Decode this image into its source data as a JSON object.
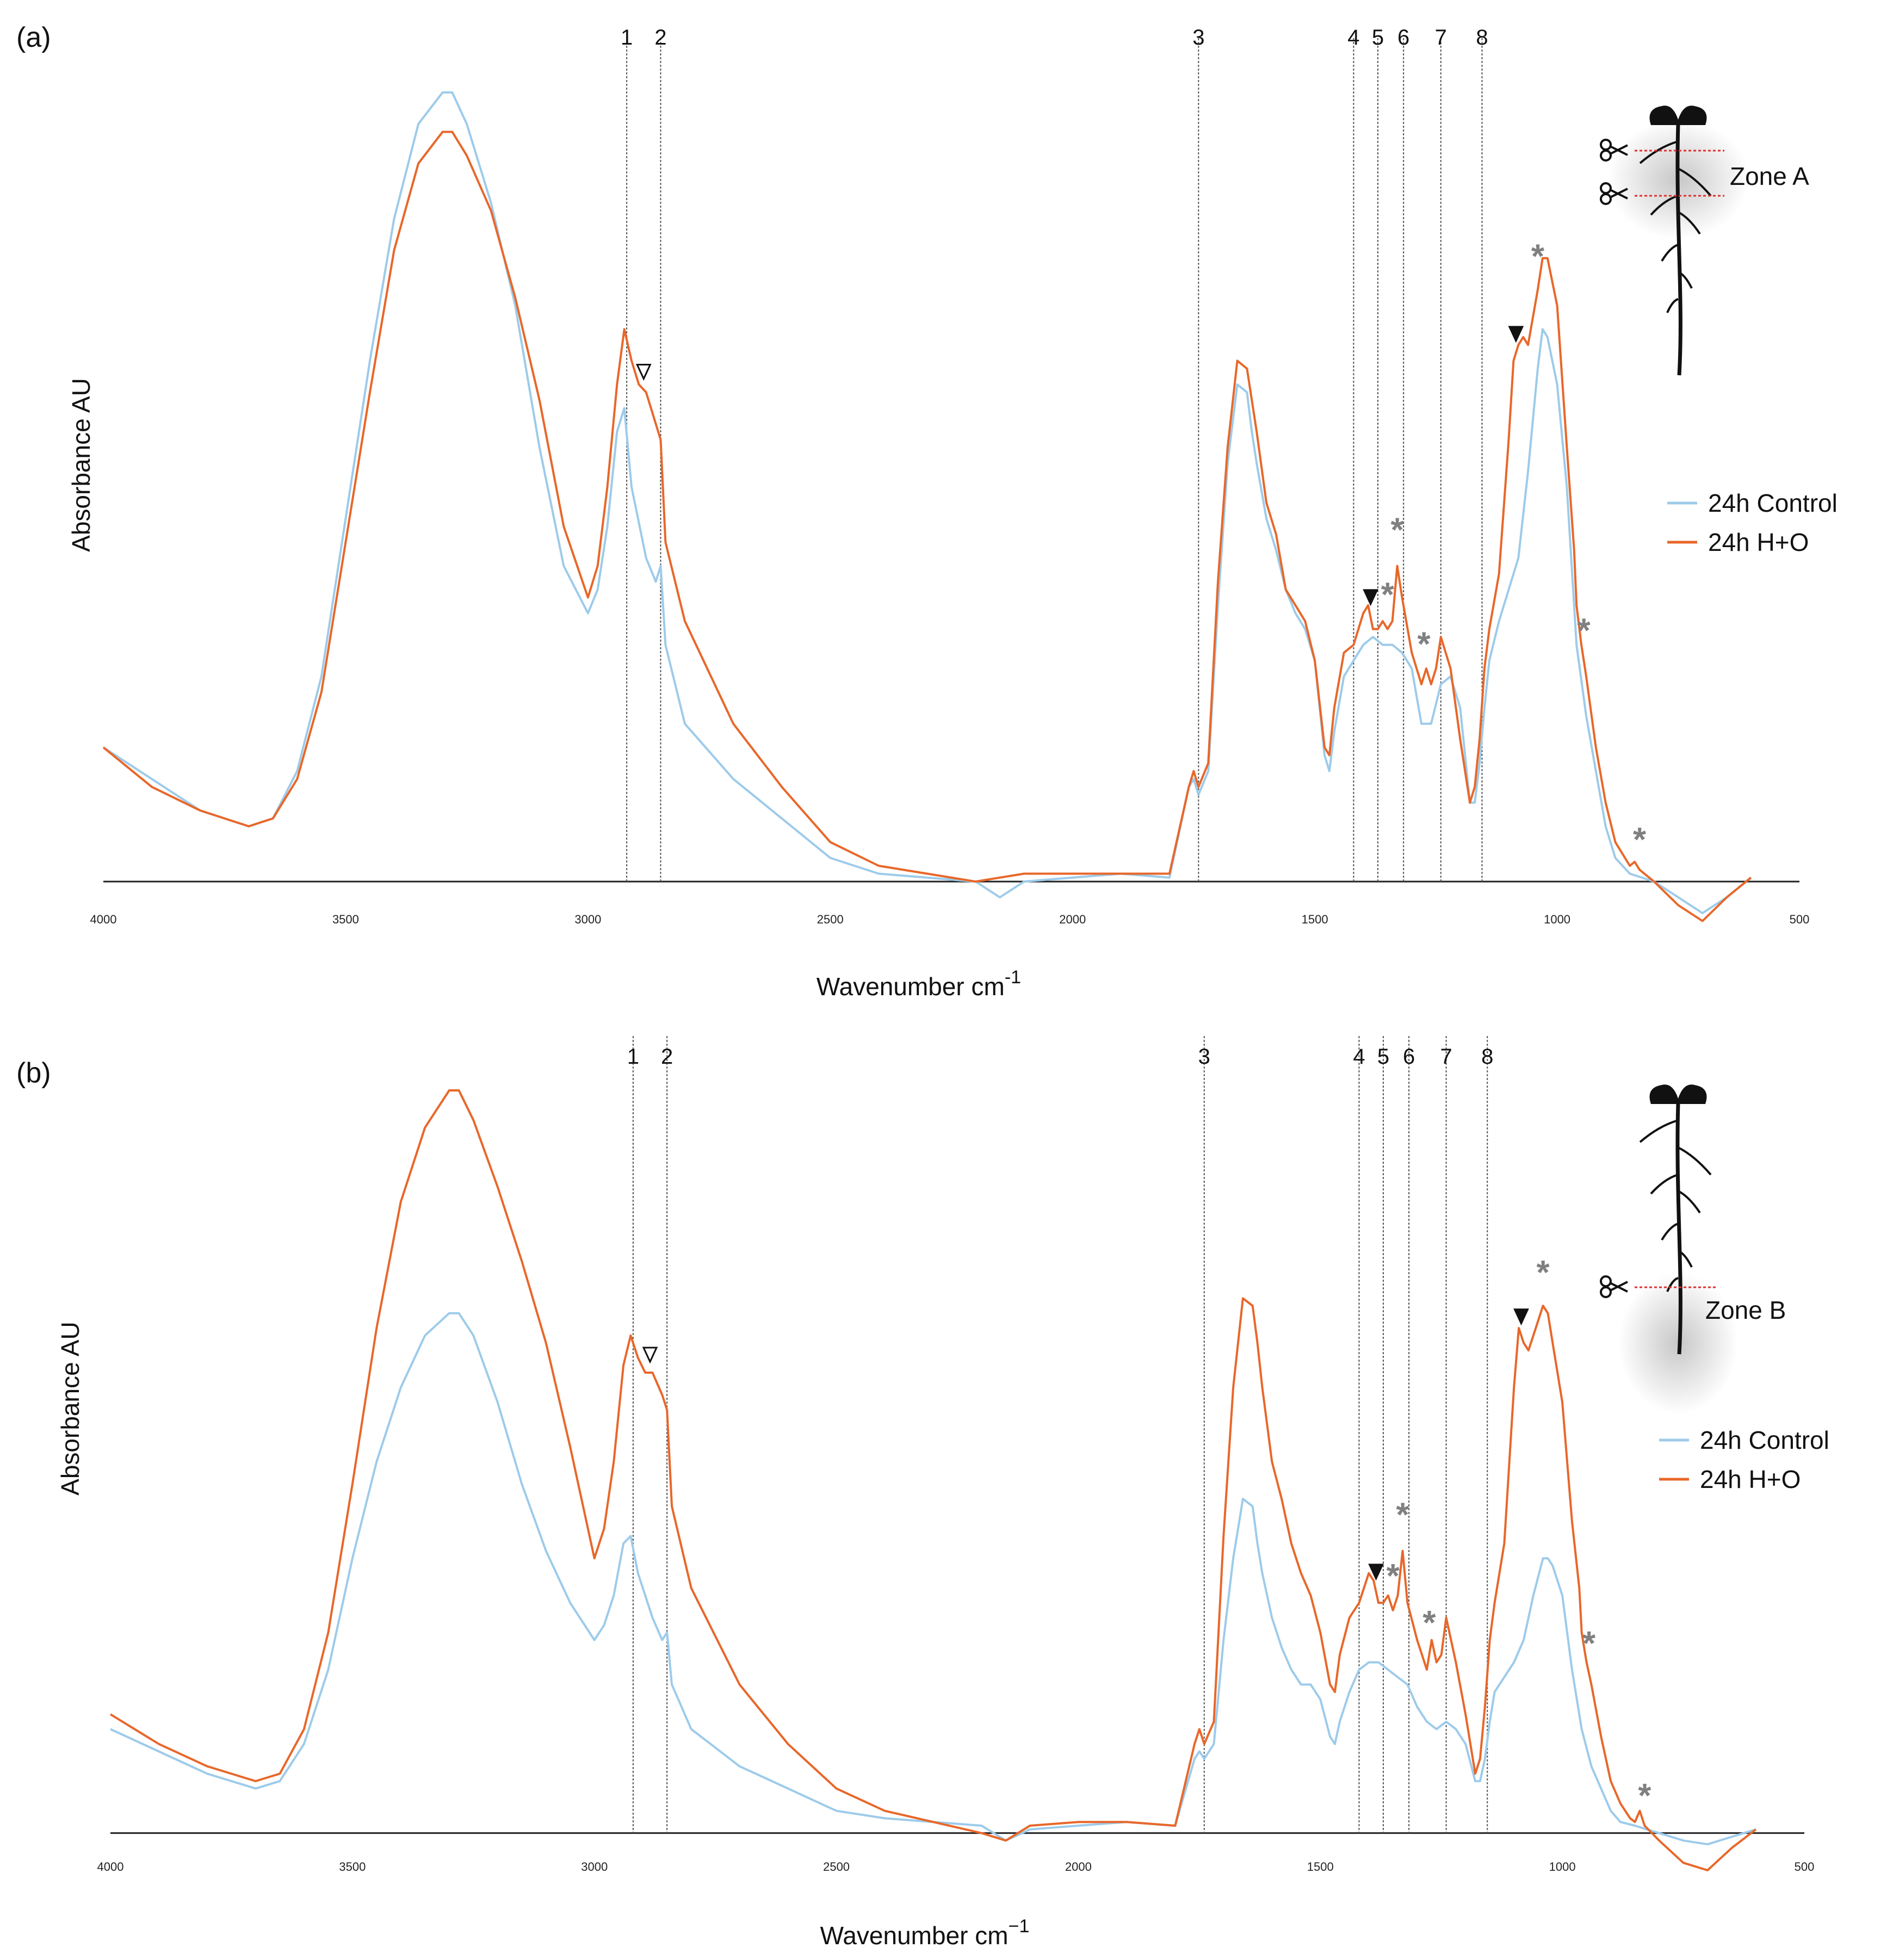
{
  "chart_data": [
    {
      "type": "line",
      "panel_label": "(a)",
      "xlabel_main": "Wavenumber cm",
      "xlabel_sup": "-1",
      "ylabel": "Absorbance AU",
      "xlim": [
        4000,
        500
      ],
      "ylim": [
        -0.02,
        1.0
      ],
      "x_ticks": [
        "4000",
        "3500",
        "3000",
        "2500",
        "2000",
        "1500",
        "1000",
        "500"
      ],
      "band_lines": [
        {
          "label": "1",
          "x": 2920
        },
        {
          "label": "2",
          "x": 2850
        },
        {
          "label": "3",
          "x": 1740
        },
        {
          "label": "4",
          "x": 1420
        },
        {
          "label": "5",
          "x": 1370
        },
        {
          "label": "6",
          "x": 1317
        },
        {
          "label": "7",
          "x": 1240
        },
        {
          "label": "8",
          "x": 1155
        }
      ],
      "zone_label": "Zone A",
      "legend": [
        "24h Control",
        "24h H+O"
      ],
      "series": [
        {
          "name": "24h Control",
          "color": "#9dcbea",
          "x": [
            4000,
            3900,
            3800,
            3700,
            3650,
            3600,
            3550,
            3500,
            3450,
            3400,
            3350,
            3300,
            3280,
            3250,
            3200,
            3150,
            3100,
            3050,
            3000,
            2980,
            2960,
            2940,
            2925,
            2910,
            2880,
            2860,
            2850,
            2840,
            2800,
            2700,
            2600,
            2500,
            2400,
            2300,
            2200,
            2150,
            2100,
            2000,
            1900,
            1800,
            1760,
            1750,
            1740,
            1720,
            1700,
            1680,
            1660,
            1640,
            1630,
            1620,
            1600,
            1580,
            1560,
            1540,
            1520,
            1500,
            1480,
            1470,
            1460,
            1440,
            1420,
            1400,
            1380,
            1360,
            1340,
            1320,
            1300,
            1280,
            1260,
            1240,
            1220,
            1200,
            1180,
            1170,
            1160,
            1150,
            1140,
            1120,
            1100,
            1080,
            1060,
            1040,
            1030,
            1020,
            1000,
            980,
            960,
            940,
            920,
            900,
            880,
            850,
            800,
            750,
            700,
            650,
            600
          ],
          "y": [
            0.17,
            0.13,
            0.09,
            0.07,
            0.08,
            0.14,
            0.26,
            0.46,
            0.66,
            0.84,
            0.96,
            1.0,
            1.0,
            0.96,
            0.86,
            0.73,
            0.55,
            0.4,
            0.34,
            0.37,
            0.45,
            0.57,
            0.6,
            0.5,
            0.41,
            0.38,
            0.4,
            0.3,
            0.2,
            0.13,
            0.08,
            0.03,
            0.01,
            0.005,
            0.0,
            -0.02,
            0.0,
            0.005,
            0.01,
            0.005,
            0.12,
            0.13,
            0.11,
            0.14,
            0.35,
            0.53,
            0.63,
            0.62,
            0.57,
            0.53,
            0.46,
            0.42,
            0.37,
            0.34,
            0.32,
            0.28,
            0.16,
            0.14,
            0.19,
            0.26,
            0.28,
            0.3,
            0.31,
            0.3,
            0.3,
            0.29,
            0.27,
            0.2,
            0.2,
            0.25,
            0.26,
            0.22,
            0.1,
            0.1,
            0.15,
            0.22,
            0.28,
            0.33,
            0.37,
            0.41,
            0.52,
            0.65,
            0.7,
            0.69,
            0.63,
            0.5,
            0.3,
            0.21,
            0.14,
            0.07,
            0.03,
            0.01,
            0.0,
            -0.02,
            -0.04,
            -0.02,
            0.005
          ]
        },
        {
          "name": "24h H+O",
          "color": "#e8672a",
          "x": [
            4000,
            3900,
            3800,
            3700,
            3650,
            3600,
            3550,
            3500,
            3450,
            3400,
            3350,
            3300,
            3280,
            3250,
            3200,
            3150,
            3100,
            3050,
            3000,
            2980,
            2960,
            2940,
            2925,
            2910,
            2895,
            2880,
            2860,
            2850,
            2840,
            2800,
            2700,
            2600,
            2500,
            2400,
            2300,
            2200,
            2150,
            2100,
            2000,
            1900,
            1800,
            1760,
            1750,
            1740,
            1720,
            1700,
            1680,
            1660,
            1640,
            1630,
            1620,
            1600,
            1580,
            1560,
            1540,
            1520,
            1500,
            1480,
            1470,
            1460,
            1440,
            1420,
            1400,
            1390,
            1380,
            1370,
            1360,
            1350,
            1340,
            1330,
            1320,
            1300,
            1290,
            1280,
            1270,
            1260,
            1250,
            1240,
            1220,
            1200,
            1180,
            1170,
            1160,
            1150,
            1140,
            1120,
            1100,
            1090,
            1080,
            1070,
            1060,
            1040,
            1030,
            1020,
            1000,
            980,
            965,
            960,
            950,
            940,
            920,
            900,
            880,
            860,
            850,
            840,
            830,
            800,
            750,
            700,
            650,
            600
          ],
          "y": [
            0.17,
            0.12,
            0.09,
            0.07,
            0.08,
            0.13,
            0.24,
            0.43,
            0.62,
            0.8,
            0.91,
            0.95,
            0.95,
            0.92,
            0.85,
            0.74,
            0.61,
            0.45,
            0.36,
            0.4,
            0.5,
            0.63,
            0.7,
            0.66,
            0.63,
            0.62,
            0.58,
            0.56,
            0.43,
            0.33,
            0.2,
            0.12,
            0.05,
            0.02,
            0.01,
            0.0,
            0.005,
            0.01,
            0.01,
            0.01,
            0.01,
            0.12,
            0.14,
            0.12,
            0.15,
            0.38,
            0.55,
            0.66,
            0.65,
            0.61,
            0.57,
            0.48,
            0.44,
            0.37,
            0.35,
            0.33,
            0.28,
            0.17,
            0.16,
            0.22,
            0.29,
            0.3,
            0.34,
            0.35,
            0.32,
            0.32,
            0.33,
            0.32,
            0.33,
            0.4,
            0.36,
            0.29,
            0.27,
            0.25,
            0.27,
            0.25,
            0.27,
            0.31,
            0.27,
            0.18,
            0.1,
            0.12,
            0.18,
            0.27,
            0.32,
            0.39,
            0.56,
            0.66,
            0.68,
            0.69,
            0.68,
            0.75,
            0.79,
            0.79,
            0.73,
            0.55,
            0.42,
            0.35,
            0.3,
            0.26,
            0.17,
            0.1,
            0.05,
            0.03,
            0.02,
            0.025,
            0.015,
            0.0,
            -0.03,
            -0.05,
            -0.02,
            0.005
          ]
        }
      ]
    },
    {
      "type": "line",
      "panel_label": "(b)",
      "xlabel_main": "Wavenumber cm",
      "xlabel_sup": "−1",
      "ylabel": "Absorbance AU",
      "xlim": [
        4000,
        500
      ],
      "ylim": [
        -0.02,
        1.0
      ],
      "x_ticks": [
        "4000",
        "3500",
        "3000",
        "2500",
        "2000",
        "1500",
        "1000",
        "500"
      ],
      "band_lines": [
        {
          "label": "1",
          "x": 2920
        },
        {
          "label": "2",
          "x": 2850
        },
        {
          "label": "3",
          "x": 1740
        },
        {
          "label": "4",
          "x": 1420
        },
        {
          "label": "5",
          "x": 1370
        },
        {
          "label": "6",
          "x": 1317
        },
        {
          "label": "7",
          "x": 1240
        },
        {
          "label": "8",
          "x": 1155
        }
      ],
      "zone_label": "Zone B",
      "legend": [
        "24h Control",
        "24h H+O"
      ],
      "series": [
        {
          "name": "24h Control",
          "color": "#9dcbea",
          "x": [
            4000,
            3900,
            3800,
            3700,
            3650,
            3600,
            3550,
            3500,
            3450,
            3400,
            3350,
            3300,
            3280,
            3250,
            3200,
            3150,
            3100,
            3050,
            3000,
            2980,
            2960,
            2940,
            2925,
            2910,
            2880,
            2860,
            2850,
            2840,
            2800,
            2700,
            2600,
            2500,
            2400,
            2300,
            2200,
            2150,
            2100,
            2000,
            1900,
            1800,
            1760,
            1750,
            1740,
            1720,
            1700,
            1680,
            1660,
            1640,
            1630,
            1620,
            1600,
            1580,
            1560,
            1540,
            1520,
            1500,
            1480,
            1470,
            1460,
            1440,
            1420,
            1400,
            1380,
            1360,
            1340,
            1320,
            1300,
            1280,
            1260,
            1240,
            1220,
            1200,
            1180,
            1170,
            1160,
            1150,
            1140,
            1120,
            1100,
            1080,
            1060,
            1040,
            1030,
            1020,
            1000,
            980,
            960,
            940,
            920,
            900,
            880,
            850,
            800,
            750,
            700,
            650,
            600
          ],
          "y": [
            0.14,
            0.11,
            0.08,
            0.06,
            0.07,
            0.12,
            0.22,
            0.37,
            0.5,
            0.6,
            0.67,
            0.7,
            0.7,
            0.67,
            0.58,
            0.47,
            0.38,
            0.31,
            0.26,
            0.28,
            0.32,
            0.39,
            0.4,
            0.35,
            0.29,
            0.26,
            0.27,
            0.2,
            0.14,
            0.09,
            0.06,
            0.03,
            0.02,
            0.015,
            0.01,
            -0.01,
            0.005,
            0.01,
            0.015,
            0.01,
            0.1,
            0.11,
            0.1,
            0.12,
            0.26,
            0.37,
            0.45,
            0.44,
            0.39,
            0.35,
            0.29,
            0.25,
            0.22,
            0.2,
            0.2,
            0.18,
            0.13,
            0.12,
            0.15,
            0.19,
            0.22,
            0.23,
            0.23,
            0.22,
            0.21,
            0.2,
            0.17,
            0.15,
            0.14,
            0.15,
            0.14,
            0.12,
            0.07,
            0.07,
            0.1,
            0.15,
            0.19,
            0.21,
            0.23,
            0.26,
            0.32,
            0.37,
            0.37,
            0.36,
            0.32,
            0.22,
            0.14,
            0.09,
            0.06,
            0.03,
            0.015,
            0.01,
            0.0,
            -0.01,
            -0.015,
            -0.005,
            0.005
          ]
        },
        {
          "name": "24h H+O",
          "color": "#e8672a",
          "x": [
            4000,
            3900,
            3800,
            3700,
            3650,
            3600,
            3550,
            3500,
            3450,
            3400,
            3350,
            3300,
            3280,
            3250,
            3200,
            3150,
            3100,
            3050,
            3000,
            2980,
            2960,
            2940,
            2925,
            2910,
            2895,
            2880,
            2860,
            2850,
            2840,
            2800,
            2700,
            2600,
            2500,
            2400,
            2300,
            2200,
            2150,
            2100,
            2000,
            1900,
            1800,
            1760,
            1750,
            1740,
            1720,
            1700,
            1680,
            1660,
            1640,
            1630,
            1620,
            1600,
            1580,
            1560,
            1540,
            1520,
            1500,
            1480,
            1470,
            1460,
            1440,
            1420,
            1400,
            1390,
            1380,
            1370,
            1360,
            1350,
            1340,
            1330,
            1320,
            1300,
            1290,
            1280,
            1270,
            1260,
            1250,
            1240,
            1220,
            1200,
            1180,
            1170,
            1160,
            1150,
            1140,
            1120,
            1100,
            1090,
            1080,
            1070,
            1060,
            1040,
            1030,
            1020,
            1000,
            980,
            965,
            960,
            950,
            940,
            920,
            900,
            880,
            860,
            850,
            840,
            830,
            800,
            750,
            700,
            650,
            600
          ],
          "y": [
            0.16,
            0.12,
            0.09,
            0.07,
            0.08,
            0.14,
            0.27,
            0.47,
            0.68,
            0.85,
            0.95,
            1.0,
            1.0,
            0.96,
            0.87,
            0.77,
            0.66,
            0.52,
            0.37,
            0.41,
            0.5,
            0.63,
            0.67,
            0.64,
            0.62,
            0.62,
            0.59,
            0.57,
            0.44,
            0.33,
            0.2,
            0.12,
            0.06,
            0.03,
            0.015,
            0.0,
            -0.01,
            0.01,
            0.015,
            0.015,
            0.01,
            0.12,
            0.14,
            0.12,
            0.15,
            0.4,
            0.6,
            0.72,
            0.71,
            0.66,
            0.6,
            0.5,
            0.45,
            0.39,
            0.35,
            0.32,
            0.27,
            0.2,
            0.19,
            0.24,
            0.29,
            0.31,
            0.35,
            0.34,
            0.31,
            0.31,
            0.32,
            0.3,
            0.32,
            0.38,
            0.31,
            0.26,
            0.24,
            0.22,
            0.26,
            0.23,
            0.24,
            0.29,
            0.23,
            0.16,
            0.08,
            0.1,
            0.17,
            0.26,
            0.31,
            0.39,
            0.6,
            0.68,
            0.66,
            0.65,
            0.67,
            0.71,
            0.7,
            0.66,
            0.58,
            0.42,
            0.33,
            0.27,
            0.23,
            0.2,
            0.13,
            0.07,
            0.04,
            0.02,
            0.015,
            0.03,
            0.01,
            -0.01,
            -0.04,
            -0.05,
            -0.02,
            0.005
          ]
        }
      ]
    }
  ]
}
